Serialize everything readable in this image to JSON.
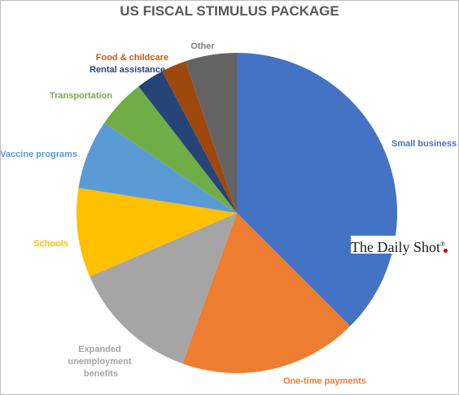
{
  "chart_data": {
    "type": "pie",
    "title": "US FISCAL STIMULUS PACKAGE",
    "start_angle_deg": 0,
    "direction": "clockwise",
    "slices": [
      {
        "label": "Small business",
        "value": 37.5,
        "color": "#4472C4",
        "label_color": "#4472C4"
      },
      {
        "label": "One-time payments",
        "value": 18.0,
        "color": "#ED7D31",
        "label_color": "#ED7D31"
      },
      {
        "label": "Expanded unemployment benefits",
        "value": 13.0,
        "color": "#A5A5A5",
        "label_color": "#A5A5A5"
      },
      {
        "label": "Schools",
        "value": 9.0,
        "color": "#FFC000",
        "label_color": "#FFC000"
      },
      {
        "label": "Vaccine programs",
        "value": 7.0,
        "color": "#5B9BD5",
        "label_color": "#5B9BD5"
      },
      {
        "label": "Transportation",
        "value": 5.0,
        "color": "#70AD47",
        "label_color": "#70AD47"
      },
      {
        "label": "Rental assistance",
        "value": 2.8,
        "color": "#264478",
        "label_color": "#264478"
      },
      {
        "label": "Food & childcare",
        "value": 2.5,
        "color": "#9E480E",
        "label_color": "#C55A11"
      },
      {
        "label": "Other",
        "value": 5.2,
        "color": "#636363",
        "label_color": "#7F7F7F"
      }
    ]
  },
  "watermark": {
    "text": "The Daily Shot",
    "mark": "®"
  }
}
